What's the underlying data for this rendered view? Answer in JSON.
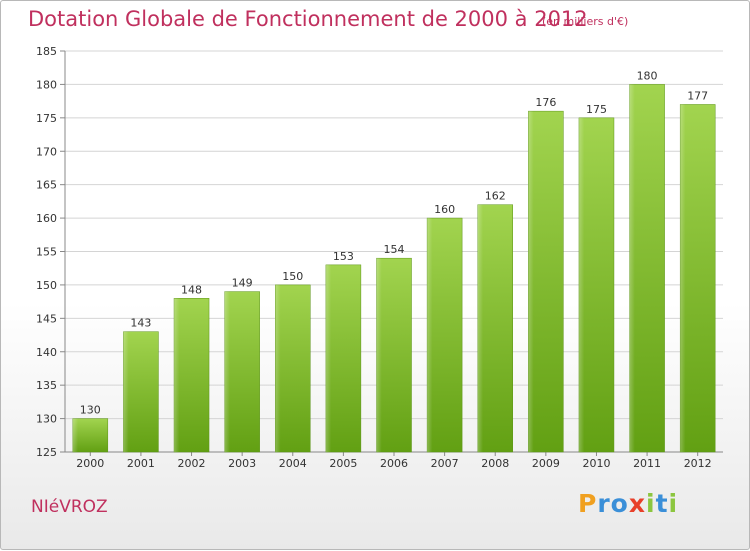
{
  "chart_data": {
    "type": "bar",
    "title": "Dotation Globale de Fonctionnement de 2000 à 2012",
    "subtitle": "(en milliers d'€)",
    "categories": [
      "2000",
      "2001",
      "2002",
      "2003",
      "2004",
      "2005",
      "2006",
      "2007",
      "2008",
      "2009",
      "2010",
      "2011",
      "2012"
    ],
    "values": [
      130,
      143,
      148,
      149,
      150,
      153,
      154,
      160,
      162,
      176,
      175,
      180,
      177
    ],
    "ylim": [
      125,
      185
    ],
    "yticks": [
      125,
      130,
      135,
      140,
      145,
      150,
      155,
      160,
      165,
      170,
      175,
      180,
      185
    ],
    "grid": true,
    "bar_color_top": "#a2d44f",
    "bar_color_bottom": "#62a013"
  },
  "commune": "NIéVROZ",
  "logo": {
    "letters": [
      "P",
      "r",
      "o",
      "x",
      "i",
      "t",
      "i"
    ],
    "colors": [
      "#f0a020",
      "#3a8fd8",
      "#3a8fd8",
      "#e8402a",
      "#8cc63f",
      "#3a8fd8",
      "#8cc63f"
    ]
  }
}
